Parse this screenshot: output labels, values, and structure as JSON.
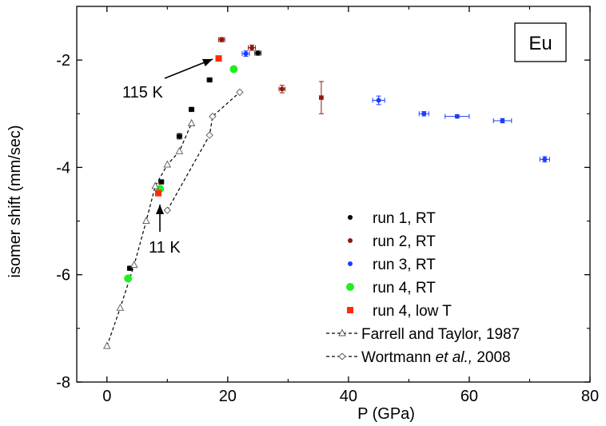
{
  "chart_data": {
    "type": "scatter",
    "xlabel": "P (GPa)",
    "ylabel": "isomer shift (mm/sec)",
    "xlim": [
      -5,
      80
    ],
    "ylim": [
      -8,
      -1
    ],
    "x_ticks": [
      0,
      20,
      40,
      60,
      80
    ],
    "y_ticks": [
      -8,
      -6,
      -4,
      -2
    ],
    "x_tick_labels": [
      "0",
      "20",
      "40",
      "60",
      "80"
    ],
    "y_tick_labels": [
      "-8",
      "-6",
      "-4",
      "-2"
    ],
    "grid": false,
    "legend_position": "bottom-right",
    "box_label": "Eu",
    "annotations": [
      {
        "text": "115 K",
        "points_to": {
          "x": 18.5,
          "y": -1.97
        }
      },
      {
        "text": "11 K",
        "points_to": {
          "x": 8.6,
          "y": -4.43
        }
      }
    ],
    "series": [
      {
        "name": "run 1, RT",
        "marker": "circle",
        "color": "#000000",
        "points": [
          {
            "x": 3.8,
            "y": -5.88,
            "xerr": 0.4,
            "yerr": 0.04
          },
          {
            "x": 9.0,
            "y": -4.27,
            "xerr": 0.4,
            "yerr": 0.04
          },
          {
            "x": 12.0,
            "y": -3.42,
            "xerr": 0.4,
            "yerr": 0.05
          },
          {
            "x": 14.0,
            "y": -2.92,
            "xerr": 0.4,
            "yerr": 0.04
          },
          {
            "x": 17.0,
            "y": -2.37,
            "xerr": 0.4,
            "yerr": 0.04
          },
          {
            "x": 25.0,
            "y": -1.87,
            "xerr": 0.5,
            "yerr": 0.04
          }
        ]
      },
      {
        "name": "run 2, RT",
        "marker": "circle",
        "color": "#8b1a0e",
        "points": [
          {
            "x": 19.0,
            "y": -1.62,
            "xerr": 0.5,
            "yerr": 0.04
          },
          {
            "x": 24.0,
            "y": -1.77,
            "xerr": 0.6,
            "yerr": 0.05
          },
          {
            "x": 29.0,
            "y": -2.54,
            "xerr": 0.5,
            "yerr": 0.07
          },
          {
            "x": 35.5,
            "y": -2.7,
            "xerr": 0.3,
            "yerr": 0.3
          }
        ]
      },
      {
        "name": "run 3, RT",
        "marker": "circle",
        "color": "#1a3cff",
        "points": [
          {
            "x": 23.0,
            "y": -1.88,
            "xerr": 0.6,
            "yerr": 0.05
          },
          {
            "x": 45.0,
            "y": -2.75,
            "xerr": 1.0,
            "yerr": 0.08
          },
          {
            "x": 52.5,
            "y": -3.0,
            "xerr": 0.8,
            "yerr": 0.04
          },
          {
            "x": 58.0,
            "y": -3.05,
            "xerr": 2.0,
            "yerr": 0.03
          },
          {
            "x": 65.5,
            "y": -3.13,
            "xerr": 1.5,
            "yerr": 0.04
          },
          {
            "x": 72.5,
            "y": -3.85,
            "xerr": 0.8,
            "yerr": 0.05
          }
        ]
      },
      {
        "name": "run 4, RT",
        "marker": "circle-large",
        "color": "#22ee22",
        "points": [
          {
            "x": 3.5,
            "y": -6.07
          },
          {
            "x": 8.8,
            "y": -4.4
          },
          {
            "x": 21.0,
            "y": -2.17
          }
        ]
      },
      {
        "name": "run 4, low T",
        "marker": "square",
        "color": "#ff2a0a",
        "points": [
          {
            "x": 8.5,
            "y": -4.48
          },
          {
            "x": 18.5,
            "y": -1.97
          }
        ]
      },
      {
        "name": "Farrell and Taylor, 1987",
        "marker": "triangle-open",
        "color": "#555555",
        "line": "dashed",
        "points": [
          {
            "x": 0,
            "y": -7.33
          },
          {
            "x": 2.2,
            "y": -6.62
          },
          {
            "x": 4.5,
            "y": -5.82
          },
          {
            "x": 6.5,
            "y": -5.0
          },
          {
            "x": 8.0,
            "y": -4.35
          },
          {
            "x": 10.0,
            "y": -3.95
          },
          {
            "x": 12.0,
            "y": -3.7
          },
          {
            "x": 14.0,
            "y": -3.18
          }
        ]
      },
      {
        "name": "Wortmann et al., 2008",
        "marker": "diamond-open",
        "color": "#555555",
        "line": "dashed",
        "points": [
          {
            "x": 10.0,
            "y": -4.8
          },
          {
            "x": 17.0,
            "y": -3.4
          },
          {
            "x": 17.5,
            "y": -3.05
          },
          {
            "x": 22.0,
            "y": -2.6
          }
        ]
      }
    ]
  }
}
